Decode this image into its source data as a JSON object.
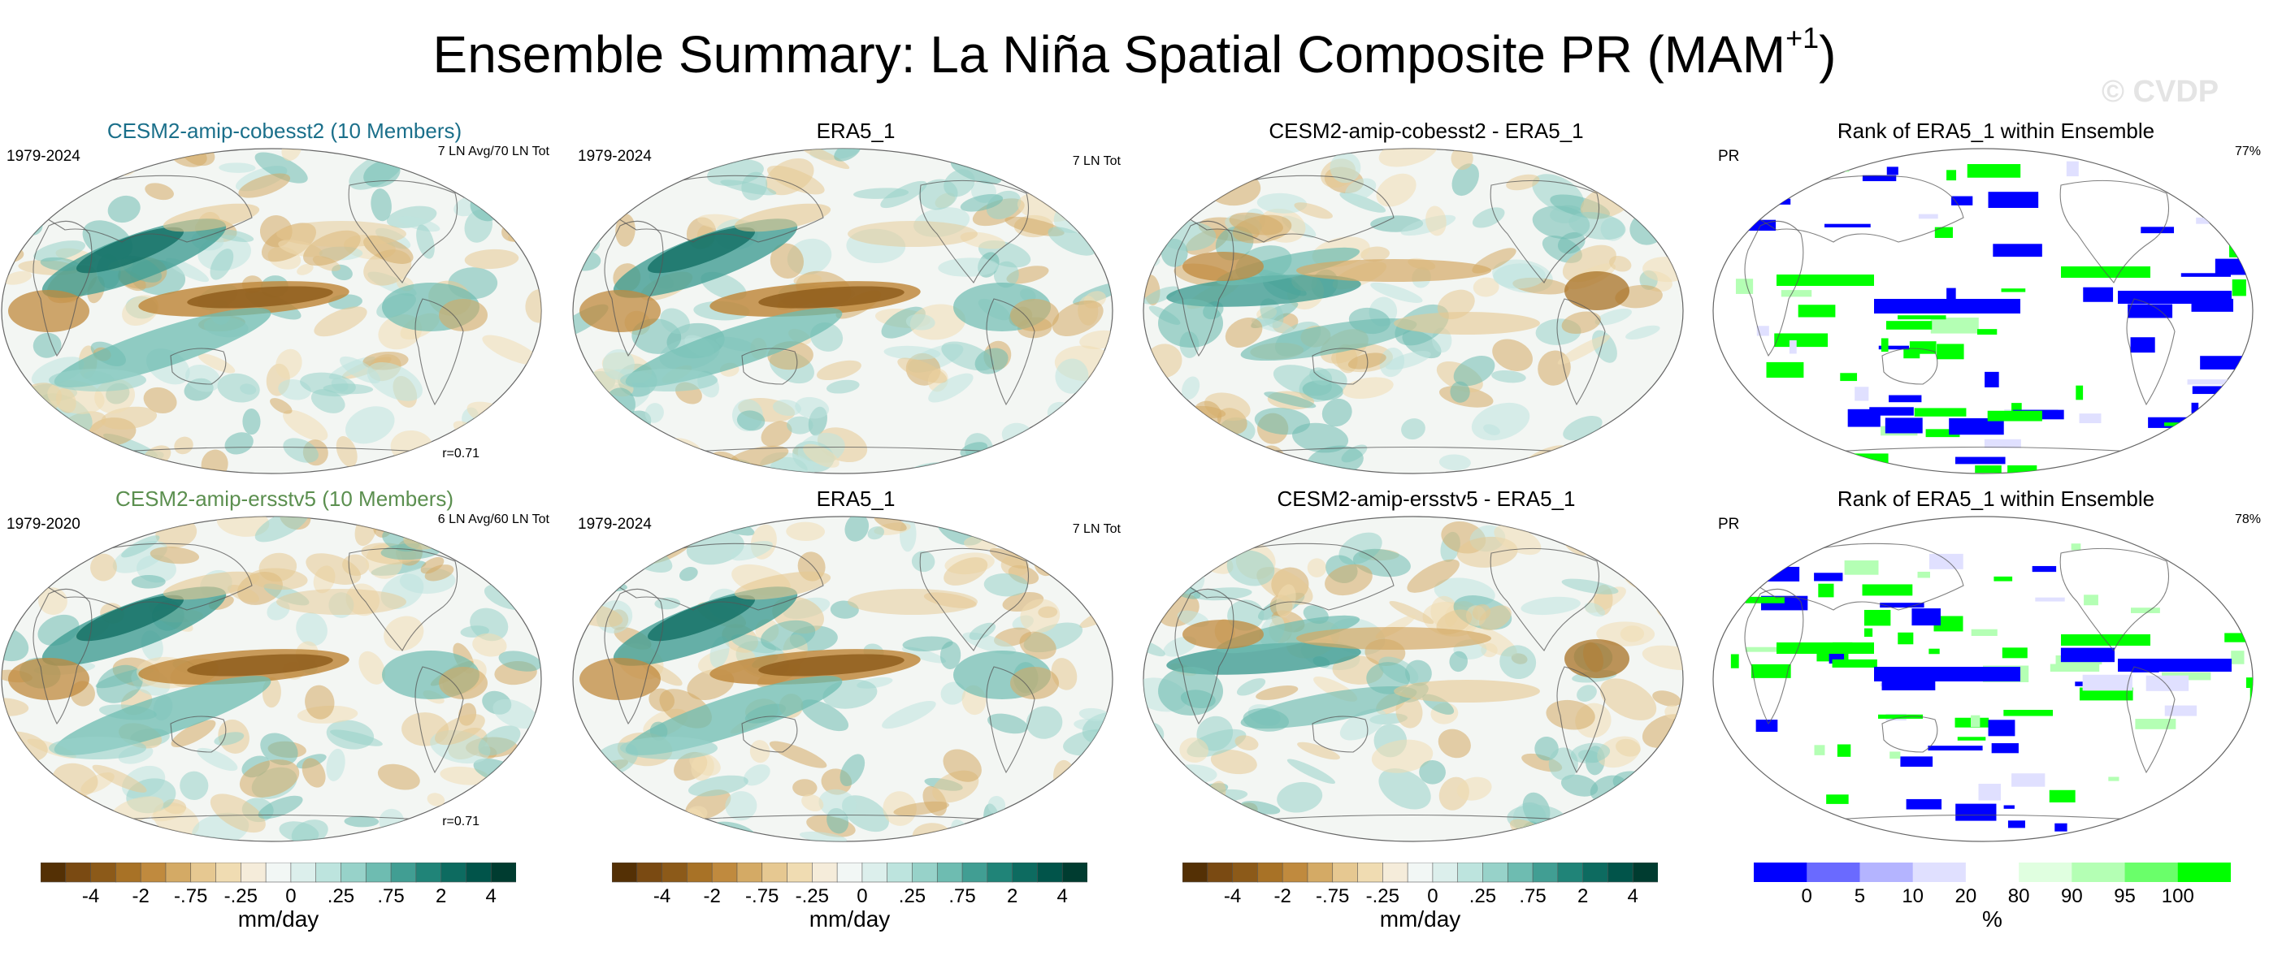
{
  "figure": {
    "title_main": "Ensemble Summary: La Niña Spatial Composite PR (MAM",
    "title_sup": "+1",
    "title_end": ")",
    "watermark": "© CVDP"
  },
  "panels": [
    {
      "title": "CESM2-amip-cobesst2 (10 Members)",
      "left_label": "1979-2024",
      "right_label": "7 LN Avg/70 LN Tot",
      "corr": "r=0.71",
      "kind": "field"
    },
    {
      "title": "ERA5_1",
      "left_label": "1979-2024",
      "right_label": "7 LN Tot",
      "corr": "",
      "kind": "field"
    },
    {
      "title": "CESM2-amip-cobesst2 - ERA5_1",
      "left_label": "",
      "right_label": "",
      "corr": "",
      "kind": "diff"
    },
    {
      "title": "Rank of ERA5_1 within Ensemble",
      "left_label": "PR",
      "right_label": "77%",
      "corr": "",
      "kind": "rank"
    },
    {
      "title": "CESM2-amip-ersstv5 (10 Members)",
      "left_label": "1979-2020",
      "right_label": "6 LN Avg/60 LN Tot",
      "corr": "r=0.71",
      "kind": "field"
    },
    {
      "title": "ERA5_1",
      "left_label": "1979-2024",
      "right_label": "7 LN Tot",
      "corr": "",
      "kind": "field"
    },
    {
      "title": "CESM2-amip-ersstv5 - ERA5_1",
      "left_label": "",
      "right_label": "",
      "corr": "",
      "kind": "diff"
    },
    {
      "title": "Rank of ERA5_1 within Ensemble",
      "left_label": "PR",
      "right_label": "78%",
      "corr": "",
      "kind": "rank"
    }
  ],
  "chart_data": {
    "type": "heatmap",
    "title": "Ensemble Summary: La Niña Spatial Composite PR (MAM+1)",
    "variable": "PR",
    "season": "MAM+1",
    "projection": "Robinson global",
    "pr_colorbar": {
      "units": "mm/day",
      "tick_labels": [
        "-4",
        "-2",
        "-.75",
        "-.25",
        "0",
        ".25",
        ".75",
        "2",
        "4"
      ],
      "colors": [
        "#543005",
        "#7a4a12",
        "#8c5a19",
        "#a87226",
        "#c08a3e",
        "#d4aa65",
        "#e6c891",
        "#f0dcb2",
        "#f5ecda",
        "#f2f7f5",
        "#dcefec",
        "#bde4de",
        "#97d2c9",
        "#6ebcb1",
        "#419e93",
        "#208478",
        "#0d6b60",
        "#01544a",
        "#003c30"
      ]
    },
    "rank_colorbar": {
      "units": "%",
      "tick_labels": [
        "0",
        "5",
        "10",
        "20",
        "80",
        "90",
        "95",
        "100"
      ],
      "colors": [
        "#0000ff",
        "#6a6aff",
        "#b4b4ff",
        "#e0e0ff",
        "#ffffff",
        "#e0ffe0",
        "#b4ffb4",
        "#6aff6a",
        "#00ff00"
      ]
    },
    "panel_stats": [
      {
        "panel": "CESM2-amip-cobesst2 (10 Members)",
        "years": "1979-2024",
        "events": "7 LN Avg/70 LN Tot",
        "pattern_corr": 0.71
      },
      {
        "panel": "ERA5_1 (row 1)",
        "years": "1979-2024",
        "events": "7 LN Tot"
      },
      {
        "panel": "Rank of ERA5_1 within Ensemble (row 1)",
        "percent_within": 77
      },
      {
        "panel": "CESM2-amip-ersstv5 (10 Members)",
        "years": "1979-2020",
        "events": "6 LN Avg/60 LN Tot",
        "pattern_corr": 0.71
      },
      {
        "panel": "ERA5_1 (row 2)",
        "years": "1979-2024",
        "events": "7 LN Tot"
      },
      {
        "panel": "Rank of ERA5_1 within Ensemble (row 2)",
        "percent_within": 78
      }
    ]
  }
}
